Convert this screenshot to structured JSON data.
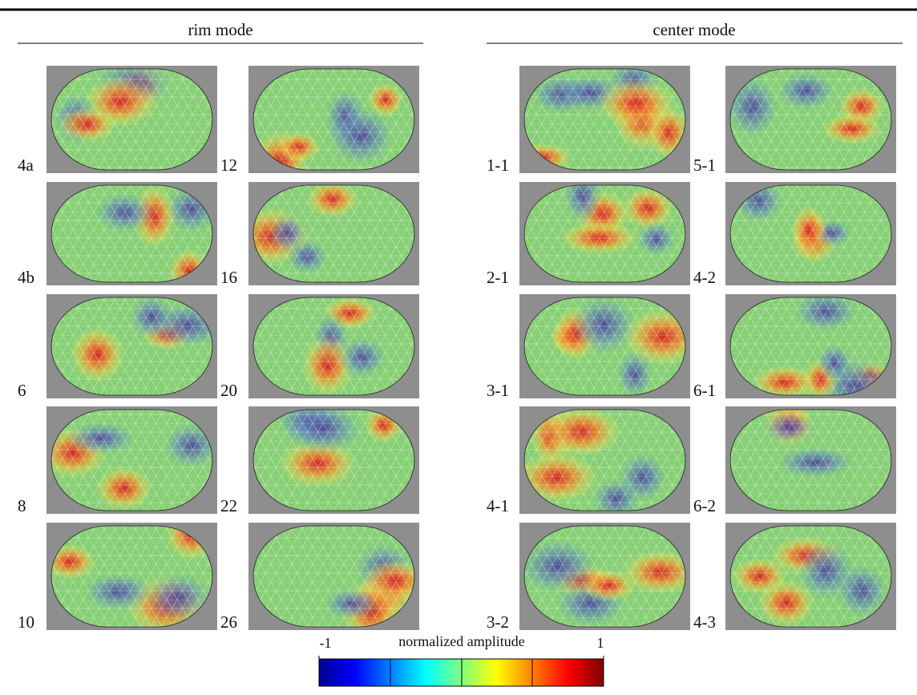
{
  "header": {
    "left_title": "rim mode",
    "right_title": "center mode"
  },
  "panels": {
    "rim": [
      [
        "4a",
        "4b",
        "6",
        "8",
        "10"
      ],
      [
        "12",
        "16",
        "20",
        "22",
        "26"
      ]
    ],
    "center": [
      [
        "1-1",
        "2-1",
        "3-1",
        "4-1",
        "3-2"
      ],
      [
        "5-1",
        "4-2",
        "6-1",
        "6-2",
        "4-3"
      ]
    ]
  },
  "colorbar": {
    "label": "normalized amplitude",
    "min": -1,
    "max": 1
  }
}
